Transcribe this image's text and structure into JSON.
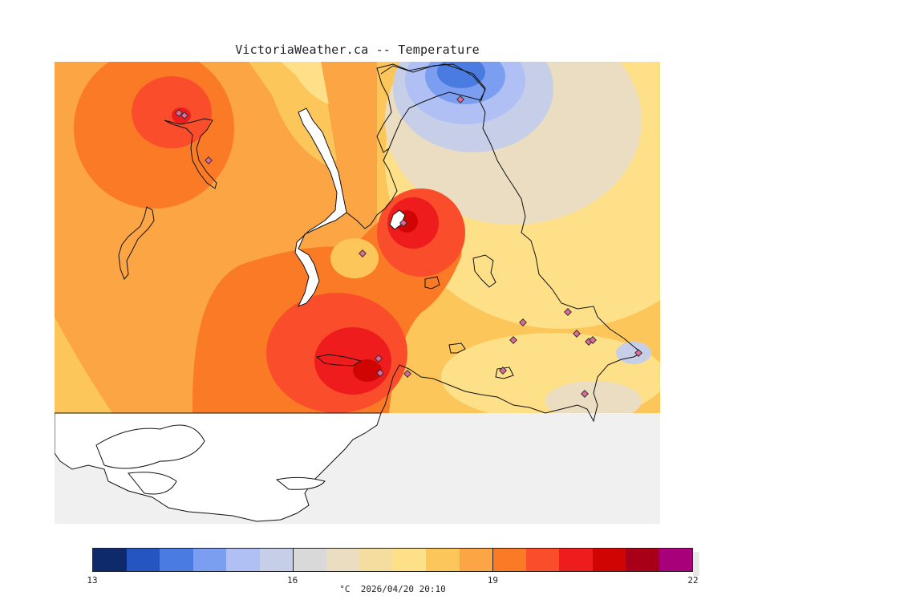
{
  "title": "VictoriaWeather.ca -- Temperature",
  "legend": {
    "min": 13,
    "max": 22,
    "ticks": [
      {
        "value": 13,
        "label": "13"
      },
      {
        "value": 16,
        "label": "16"
      },
      {
        "value": 19,
        "label": "19"
      },
      {
        "value": 22,
        "label": "22"
      }
    ],
    "colors": [
      "#0e2a6b",
      "#2455c0",
      "#4a7be0",
      "#7b9ef0",
      "#b0c0f4",
      "#c7cfe8",
      "#d9d9d9",
      "#eaddc2",
      "#f5dda0",
      "#fde088",
      "#fdc65a",
      "#fca544",
      "#fb7a26",
      "#f94d2c",
      "#ee1c1c",
      "#d10404",
      "#a80018",
      "#a8007a"
    ],
    "caption": "°C  2026/04/20 20:10"
  },
  "map": {
    "land_color": "#f0f0f0",
    "water_color": "#ffffff",
    "station_count": 18
  }
}
